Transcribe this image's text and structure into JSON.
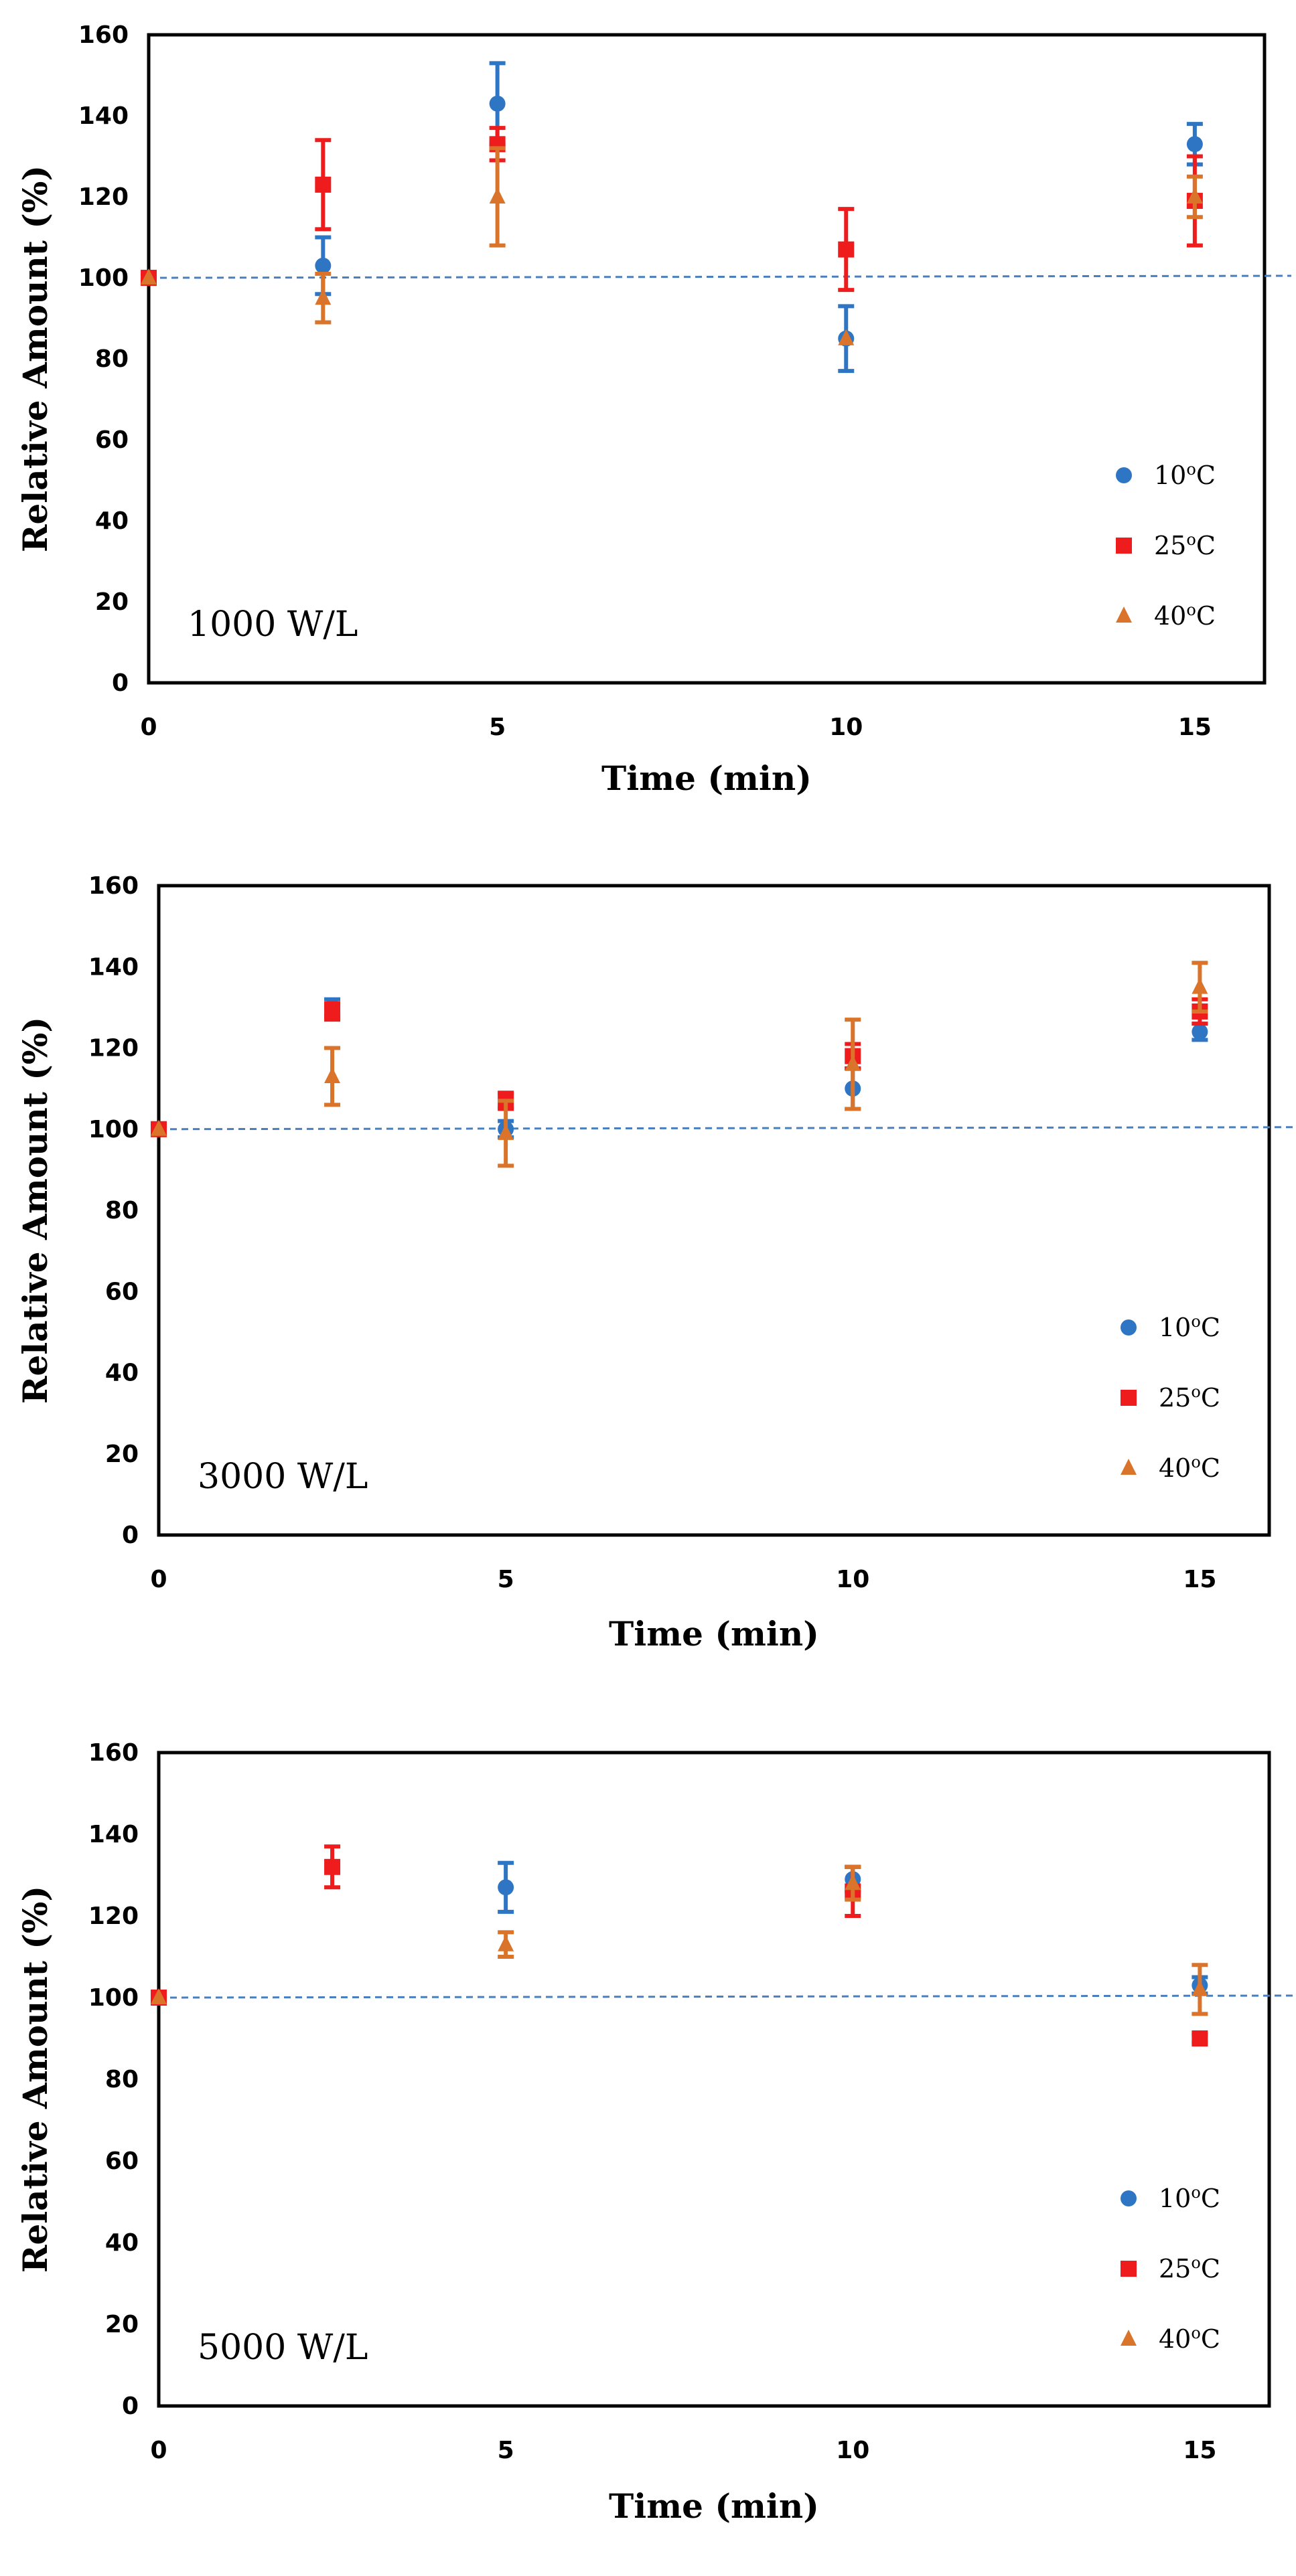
{
  "chart_data": [
    {
      "type": "scatter",
      "annotation": "1000 W/L",
      "xlabel": "Time (min)",
      "ylabel": "Relative Amount (%)",
      "xlim": [
        0,
        16
      ],
      "ylim": [
        0,
        160
      ],
      "xticks": [
        0,
        5,
        10,
        15
      ],
      "yticks": [
        0,
        20,
        40,
        60,
        80,
        100,
        120,
        140,
        160
      ],
      "reference_line": 100,
      "legend_position": "bottom-right",
      "series": [
        {
          "name": "10",
          "unit": "oC",
          "color": "#2e75c4",
          "marker": "circle",
          "x": [
            0,
            2.5,
            5,
            10,
            15
          ],
          "y": [
            100,
            103,
            143,
            85,
            133
          ],
          "err": [
            0,
            7,
            10,
            8,
            5
          ]
        },
        {
          "name": "25",
          "unit": "oC",
          "color": "#ee1c1c",
          "marker": "square",
          "x": [
            0,
            2.5,
            5,
            10,
            15
          ],
          "y": [
            100,
            123,
            133,
            107,
            119
          ],
          "err": [
            0,
            11,
            4,
            10,
            11
          ]
        },
        {
          "name": "40",
          "unit": "oC",
          "color": "#d9742a",
          "marker": "triangle",
          "x": [
            0,
            2.5,
            5,
            10,
            15
          ],
          "y": [
            100,
            95,
            120,
            85,
            120
          ],
          "err": [
            0,
            6,
            12,
            0,
            5
          ]
        }
      ]
    },
    {
      "type": "scatter",
      "annotation": "3000 W/L",
      "xlabel": "Time (min)",
      "ylabel": "Relative Amount (%)",
      "xlim": [
        0,
        16
      ],
      "ylim": [
        0,
        160
      ],
      "xticks": [
        0,
        5,
        10,
        15
      ],
      "yticks": [
        0,
        20,
        40,
        60,
        80,
        100,
        120,
        140,
        160
      ],
      "reference_line": 100,
      "legend_position": "bottom-right",
      "series": [
        {
          "name": "10",
          "unit": "oC",
          "color": "#2e75c4",
          "marker": "circle",
          "x": [
            0,
            2.5,
            5,
            10,
            15
          ],
          "y": [
            100,
            130,
            100,
            110,
            124
          ],
          "err": [
            0,
            2,
            2,
            5,
            2
          ]
        },
        {
          "name": "25",
          "unit": "oC",
          "color": "#ee1c1c",
          "marker": "square",
          "x": [
            0,
            2.5,
            5,
            10,
            15
          ],
          "y": [
            100,
            129,
            107,
            118,
            129
          ],
          "err": [
            0,
            2,
            2,
            3,
            3
          ]
        },
        {
          "name": "40",
          "unit": "oC",
          "color": "#d9742a",
          "marker": "triangle",
          "x": [
            0,
            2.5,
            5,
            10,
            15
          ],
          "y": [
            100,
            113,
            99,
            116,
            135
          ],
          "err": [
            0,
            7,
            8,
            11,
            6
          ]
        }
      ]
    },
    {
      "type": "scatter",
      "annotation": "5000 W/L",
      "xlabel": "Time (min)",
      "ylabel": "Relative Amount (%)",
      "xlim": [
        0,
        16
      ],
      "ylim": [
        0,
        160
      ],
      "xticks": [
        0,
        5,
        10,
        15
      ],
      "yticks": [
        0,
        20,
        40,
        60,
        80,
        100,
        120,
        140,
        160
      ],
      "reference_line": 100,
      "legend_position": "bottom-right",
      "series": [
        {
          "name": "10",
          "unit": "oC",
          "color": "#2e75c4",
          "marker": "circle",
          "x": [
            0,
            5,
            10,
            15
          ],
          "y": [
            100,
            127,
            129,
            103
          ],
          "err": [
            0,
            6,
            3,
            2
          ]
        },
        {
          "name": "25",
          "unit": "oC",
          "color": "#ee1c1c",
          "marker": "square",
          "x": [
            0,
            2.5,
            10,
            15
          ],
          "y": [
            100,
            132,
            126,
            90
          ],
          "err": [
            0,
            5,
            6,
            1
          ]
        },
        {
          "name": "40",
          "unit": "oC",
          "color": "#d9742a",
          "marker": "triangle",
          "x": [
            0,
            5,
            10,
            15
          ],
          "y": [
            100,
            113,
            128,
            102
          ],
          "err": [
            0,
            3,
            4,
            6
          ]
        }
      ]
    }
  ]
}
